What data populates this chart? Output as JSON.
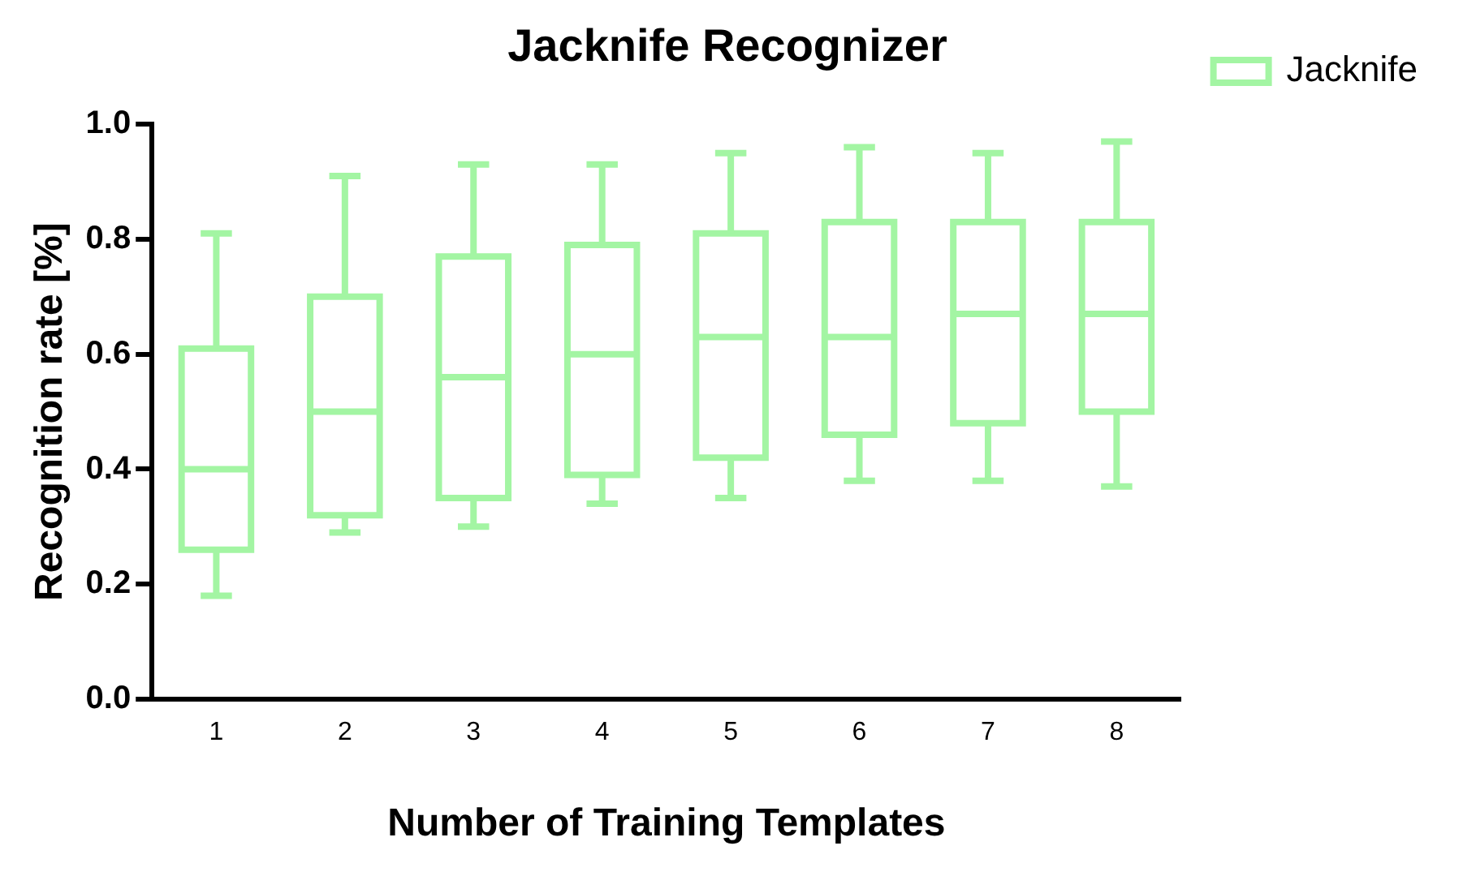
{
  "chart_data": {
    "type": "box",
    "title": "Jacknife Recognizer",
    "xlabel": "Number of Training Templates",
    "ylabel": "Recognition rate [%]",
    "categories": [
      "1",
      "2",
      "3",
      "4",
      "5",
      "6",
      "7",
      "8"
    ],
    "ylim": [
      0,
      1
    ],
    "yticks": [
      {
        "value": 0,
        "label": "0.0"
      },
      {
        "value": 0.2,
        "label": "0.2"
      },
      {
        "value": 0.4,
        "label": "0.4"
      },
      {
        "value": 0.6,
        "label": "0.6"
      },
      {
        "value": 0.8,
        "label": "0.8"
      },
      {
        "value": 1,
        "label": "1.0"
      }
    ],
    "grid": false,
    "legend": "top right",
    "series": [
      {
        "name": "Jacknife",
        "color": "#a3f5a3",
        "boxes": [
          {
            "low": 0.18,
            "q1": 0.26,
            "median": 0.4,
            "q3": 0.61,
            "high": 0.81
          },
          {
            "low": 0.29,
            "q1": 0.32,
            "median": 0.5,
            "q3": 0.7,
            "high": 0.91
          },
          {
            "low": 0.3,
            "q1": 0.35,
            "median": 0.56,
            "q3": 0.77,
            "high": 0.93
          },
          {
            "low": 0.34,
            "q1": 0.39,
            "median": 0.6,
            "q3": 0.79,
            "high": 0.93
          },
          {
            "low": 0.35,
            "q1": 0.42,
            "median": 0.63,
            "q3": 0.81,
            "high": 0.95
          },
          {
            "low": 0.38,
            "q1": 0.46,
            "median": 0.63,
            "q3": 0.83,
            "high": 0.96
          },
          {
            "low": 0.38,
            "q1": 0.48,
            "median": 0.67,
            "q3": 0.83,
            "high": 0.95
          },
          {
            "low": 0.37,
            "q1": 0.5,
            "median": 0.67,
            "q3": 0.83,
            "high": 0.97
          }
        ]
      }
    ]
  }
}
